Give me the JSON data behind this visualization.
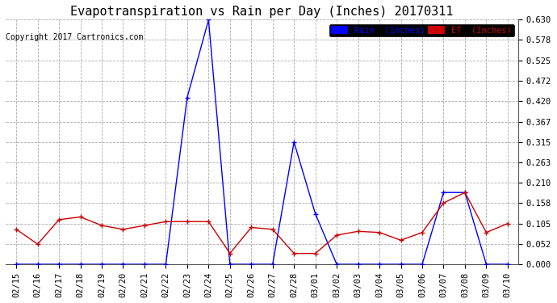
{
  "title": "Evapotranspiration vs Rain per Day (Inches) 20170311",
  "copyright": "Copyright 2017 Cartronics.com",
  "x_labels": [
    "02/15",
    "02/16",
    "02/17",
    "02/18",
    "02/19",
    "02/20",
    "02/21",
    "02/22",
    "02/23",
    "02/24",
    "02/25",
    "02/26",
    "02/27",
    "02/28",
    "03/01",
    "03/02",
    "03/03",
    "03/04",
    "03/05",
    "03/06",
    "03/07",
    "03/08",
    "03/09",
    "03/10"
  ],
  "rain_values": [
    0.0,
    0.0,
    0.0,
    0.0,
    0.0,
    0.0,
    0.0,
    0.0,
    0.43,
    0.63,
    0.0,
    0.0,
    0.0,
    0.315,
    0.13,
    0.0,
    0.0,
    0.0,
    0.0,
    0.0,
    0.185,
    0.185,
    0.0,
    0.0
  ],
  "et_values": [
    0.09,
    0.052,
    0.115,
    0.122,
    0.1,
    0.09,
    0.1,
    0.11,
    0.11,
    0.11,
    0.028,
    0.095,
    0.09,
    0.028,
    0.028,
    0.075,
    0.085,
    0.082,
    0.062,
    0.082,
    0.158,
    0.185,
    0.082,
    0.105
  ],
  "rain_color": "#0000ff",
  "et_color": "#cc0000",
  "bg_color": "#ffffff",
  "plot_bg_color": "#ffffff",
  "grid_color": "#aaaaaa",
  "ylim": [
    0.0,
    0.63
  ],
  "yticks": [
    0.0,
    0.052,
    0.105,
    0.158,
    0.21,
    0.263,
    0.315,
    0.367,
    0.42,
    0.472,
    0.525,
    0.578,
    0.63
  ],
  "legend_rain_label": "Rain  (Inches)",
  "legend_et_label": "ET  (Inches)",
  "title_fontsize": 11,
  "copyright_fontsize": 7,
  "tick_fontsize": 7.5,
  "marker": "+",
  "marker_size": 5,
  "linewidth": 1.0
}
